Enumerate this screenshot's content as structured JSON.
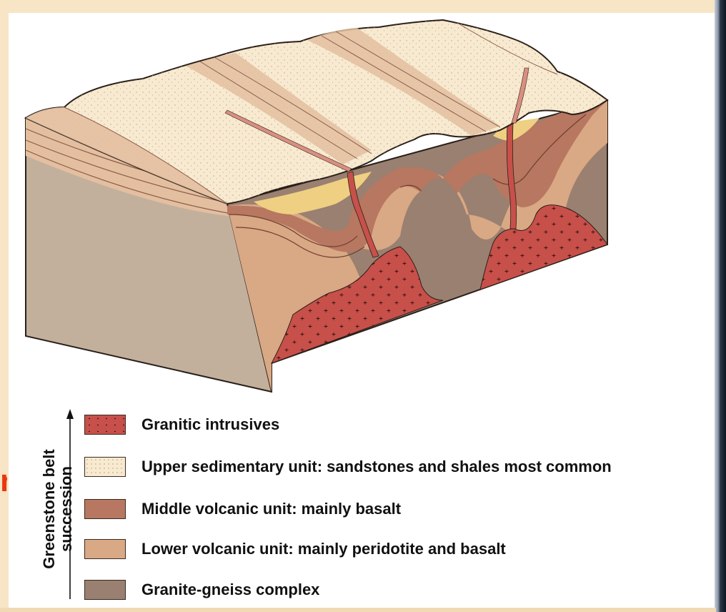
{
  "legend": {
    "axis_label_line1": "Greenstone belt",
    "axis_label_line2": "succession",
    "items": [
      {
        "label": "Granitic intrusives",
        "color": "#c8504a",
        "pattern": "crosses"
      },
      {
        "label": "Upper sedimentary unit: sandstones and shales most common",
        "color": "#f8ead0",
        "pattern": "dots"
      },
      {
        "label": "Middle volcanic unit: mainly basalt",
        "color": "#b77760",
        "pattern": "none"
      },
      {
        "label": "Lower volcanic unit: mainly peridotite and basalt",
        "color": "#d9a884",
        "pattern": "none"
      },
      {
        "label": "Granite-gneiss complex",
        "color": "#9a8070",
        "pattern": "none"
      }
    ]
  },
  "edge_fragment": "n",
  "colors": {
    "page_background": "#f7e5c6",
    "granitic": "#c8504a",
    "upper_sedimentary": "#f8ead0",
    "middle_volcanic": "#b77760",
    "lower_volcanic": "#d9a884",
    "granite_gneiss": "#9a8070",
    "yellow_sediment": "#efcf82"
  }
}
